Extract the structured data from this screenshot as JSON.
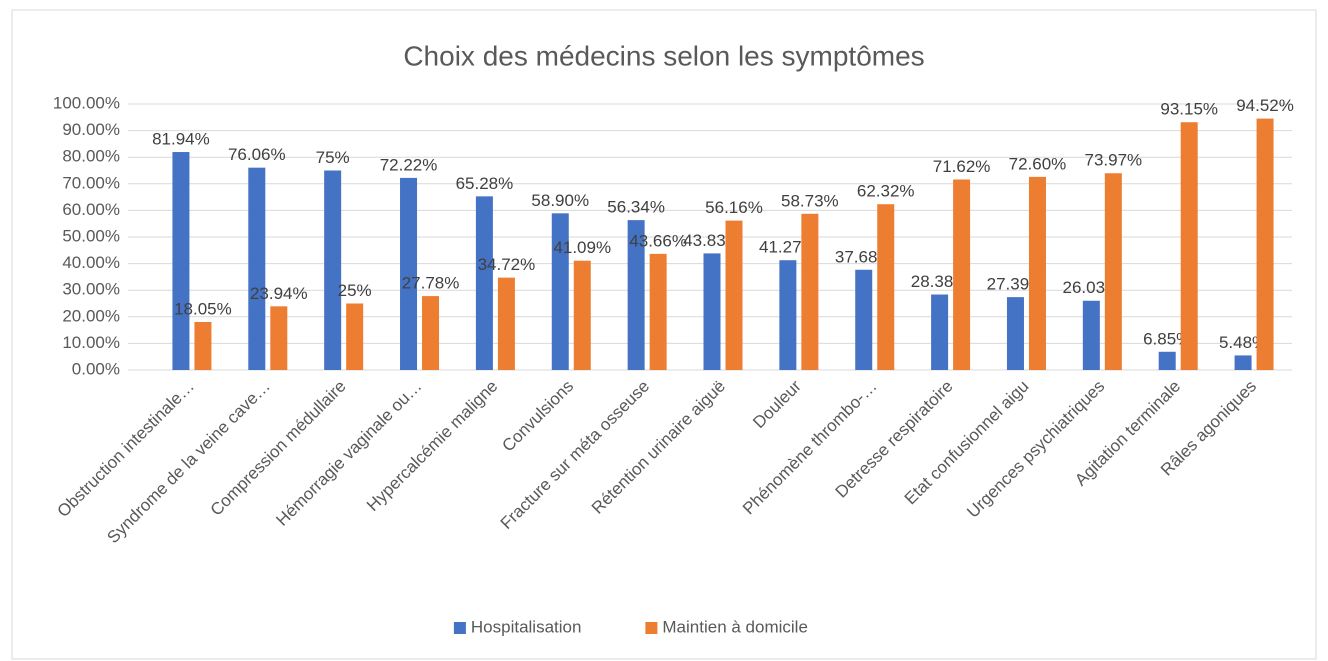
{
  "chart_data": {
    "type": "bar",
    "title": "Choix des médecins selon les symptômes",
    "categories": [
      "Obstruction intestinale…",
      "Syndrome de la veine cave…",
      "Compression médullaire",
      "Hémorragie vaginale ou…",
      "Hypercalcémie maligne",
      "Convulsions",
      "Fracture sur méta osseuse",
      "Rétention urinaire aiguë",
      "Douleur",
      "Phénomène thrombo-…",
      "Detresse respiratoire",
      "Etat confusionnel aigu",
      "Urgences psychiatriques",
      "Agitation terminale",
      "Râles agoniques"
    ],
    "series": [
      {
        "name": "Hospitalisation",
        "color": "#4472c4",
        "values": [
          81.94,
          76.06,
          75,
          72.22,
          65.28,
          58.9,
          56.34,
          43.83,
          41.27,
          37.68,
          28.38,
          27.39,
          26.03,
          6.85,
          5.48
        ],
        "value_labels": [
          "81.94%",
          "76.06%",
          "75%",
          "72.22%",
          "65.28%",
          "58.90%",
          "56.34%",
          "43.83%",
          "41.27%",
          "37.68%",
          "28.38%",
          "27.39%",
          "26.03%",
          "6.85%",
          "5.48%"
        ]
      },
      {
        "name": "Maintien à domicile",
        "color": "#ed7d31",
        "values": [
          18.05,
          23.94,
          25,
          27.78,
          34.72,
          41.09,
          43.66,
          56.16,
          58.73,
          62.32,
          71.62,
          72.6,
          73.97,
          93.15,
          94.52
        ],
        "value_labels": [
          "18.05%",
          "23.94%",
          "25%",
          "27.78%",
          "34.72%",
          "41.09%",
          "43.66%",
          "56.16%",
          "58.73%",
          "62.32%",
          "71.62%",
          "72.60%",
          "73.97%",
          "93.15%",
          "94.52%"
        ]
      }
    ],
    "ylim": [
      0,
      100
    ],
    "yticks": [
      {
        "value": 0,
        "label": "0.00%"
      },
      {
        "value": 10,
        "label": "10.00%"
      },
      {
        "value": 20,
        "label": "20.00%"
      },
      {
        "value": 30,
        "label": "30.00%"
      },
      {
        "value": 40,
        "label": "40.00%"
      },
      {
        "value": 50,
        "label": "50.00%"
      },
      {
        "value": 60,
        "label": "60.00%"
      },
      {
        "value": 70,
        "label": "70.00%"
      },
      {
        "value": 80,
        "label": "80.00%"
      },
      {
        "value": 90,
        "label": "90.00%"
      },
      {
        "value": 100,
        "label": "100.00%"
      }
    ],
    "grid": true,
    "legend": "bottom"
  }
}
